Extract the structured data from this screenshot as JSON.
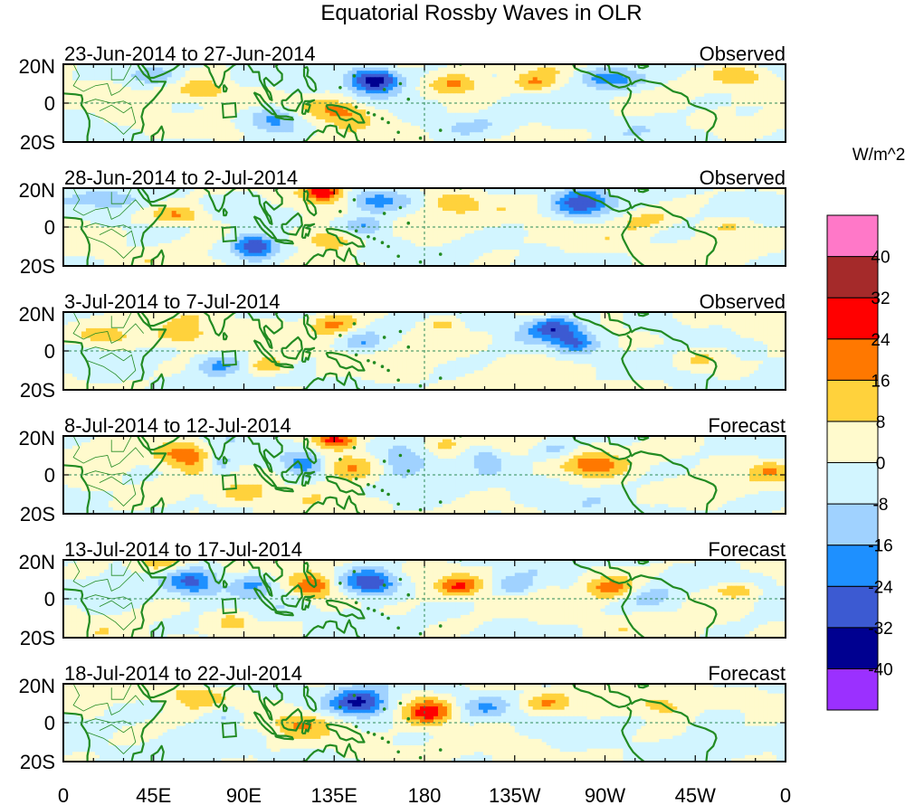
{
  "chart_data": {
    "type": "heatmap",
    "title": "Equatorial Rossby Waves in OLR",
    "units_label": "W/m^2",
    "x_tick_labels": [
      "0",
      "45E",
      "90E",
      "135E",
      "180",
      "135W",
      "90W",
      "45W",
      "0"
    ],
    "x_tick_lons": [
      0,
      45,
      90,
      135,
      180,
      225,
      270,
      315,
      360
    ],
    "x_range": [
      0,
      360
    ],
    "y_tick_labels": [
      "20N",
      "0",
      "20S"
    ],
    "y_tick_lats": [
      20,
      0,
      -20
    ],
    "y_range": [
      -20,
      20
    ],
    "levels": [
      -40,
      -32,
      -24,
      -16,
      -8,
      0,
      8,
      16,
      24,
      32,
      40
    ],
    "colorbar_labels": [
      "40",
      "32",
      "24",
      "16",
      "8",
      "0",
      "-8",
      "-16",
      "-24",
      "-32",
      "-40"
    ],
    "colors": [
      "#9b30ff",
      "#000090",
      "#3c5ad2",
      "#1e90ff",
      "#a0d2ff",
      "#d2f5ff",
      "#fffacd",
      "#ffd23c",
      "#ff7800",
      "#ff0000",
      "#a52a2a",
      "#ff78c8"
    ],
    "coast_color": "#228b22",
    "panels": [
      {
        "period": "23-Jun-2014 to 27-Jun-2014",
        "status": "Observed",
        "anomalies": [
          {
            "lon": 155,
            "lat": 12,
            "rlon": 12,
            "rlat": 6,
            "amp": -40
          },
          {
            "lon": 272,
            "lat": 12,
            "rlon": 16,
            "rlat": 6,
            "amp": -24
          },
          {
            "lon": 105,
            "lat": -8,
            "rlon": 12,
            "rlat": 6,
            "amp": -22
          },
          {
            "lon": 45,
            "lat": 14,
            "rlon": 14,
            "rlat": 5,
            "amp": -14
          },
          {
            "lon": 195,
            "lat": 10,
            "rlon": 14,
            "rlat": 6,
            "amp": 20
          },
          {
            "lon": 70,
            "lat": 6,
            "rlon": 12,
            "rlat": 5,
            "amp": 14
          },
          {
            "lon": 138,
            "lat": -4,
            "rlon": 14,
            "rlat": 6,
            "amp": 20
          },
          {
            "lon": 235,
            "lat": 10,
            "rlon": 10,
            "rlat": 5,
            "amp": 12
          },
          {
            "lon": 338,
            "lat": 14,
            "rlon": 12,
            "rlat": 5,
            "amp": 12
          },
          {
            "lon": 40,
            "lat": -10,
            "rlon": 16,
            "rlat": 6,
            "amp": 9
          },
          {
            "lon": 200,
            "lat": -12,
            "rlon": 25,
            "rlat": 6,
            "amp": -6
          }
        ]
      },
      {
        "period": "28-Jun-2014 to 2-Jul-2014",
        "status": "Observed",
        "anomalies": [
          {
            "lon": 95,
            "lat": -10,
            "rlon": 11,
            "rlat": 6,
            "amp": -34
          },
          {
            "lon": 155,
            "lat": 14,
            "rlon": 16,
            "rlat": 6,
            "amp": -22
          },
          {
            "lon": 258,
            "lat": 12,
            "rlon": 14,
            "rlat": 7,
            "amp": -26
          },
          {
            "lon": 150,
            "lat": 0,
            "rlon": 10,
            "rlat": 5,
            "amp": -16
          },
          {
            "lon": 130,
            "lat": 18,
            "rlon": 10,
            "rlat": 5,
            "amp": 30
          },
          {
            "lon": 58,
            "lat": 6,
            "rlon": 14,
            "rlat": 5,
            "amp": 18
          },
          {
            "lon": 132,
            "lat": -6,
            "rlon": 16,
            "rlat": 6,
            "amp": 20
          },
          {
            "lon": 195,
            "lat": 12,
            "rlon": 12,
            "rlat": 6,
            "amp": 12
          },
          {
            "lon": 290,
            "lat": 4,
            "rlon": 14,
            "rlat": 6,
            "amp": 10
          },
          {
            "lon": 330,
            "lat": 0,
            "rlon": 14,
            "rlat": 5,
            "amp": 9
          },
          {
            "lon": 25,
            "lat": 14,
            "rlon": 16,
            "rlat": 5,
            "amp": -12
          }
        ]
      },
      {
        "period": "3-Jul-2014 to 7-Jul-2014",
        "status": "Observed",
        "anomalies": [
          {
            "lon": 245,
            "lat": 12,
            "rlon": 14,
            "rlat": 6,
            "amp": -26
          },
          {
            "lon": 255,
            "lat": 4,
            "rlon": 10,
            "rlat": 5,
            "amp": -20
          },
          {
            "lon": 78,
            "lat": -8,
            "rlon": 12,
            "rlat": 5,
            "amp": -18
          },
          {
            "lon": 150,
            "lat": 4,
            "rlon": 10,
            "rlat": 5,
            "amp": -14
          },
          {
            "lon": 60,
            "lat": 8,
            "rlon": 14,
            "rlat": 6,
            "amp": 16
          },
          {
            "lon": 102,
            "lat": -8,
            "rlon": 12,
            "rlat": 5,
            "amp": 18
          },
          {
            "lon": 135,
            "lat": 14,
            "rlon": 12,
            "rlat": 5,
            "amp": 18
          },
          {
            "lon": 190,
            "lat": 14,
            "rlon": 10,
            "rlat": 5,
            "amp": 12
          },
          {
            "lon": 20,
            "lat": 8,
            "rlon": 14,
            "rlat": 5,
            "amp": 10
          },
          {
            "lon": 318,
            "lat": -4,
            "rlon": 14,
            "rlat": 5,
            "amp": 10
          },
          {
            "lon": 300,
            "lat": 12,
            "rlon": 12,
            "rlat": 5,
            "amp": -8
          }
        ]
      },
      {
        "period": "8-Jul-2014 to 12-Jul-2014",
        "status": "Forecast",
        "anomalies": [
          {
            "lon": 62,
            "lat": 10,
            "rlon": 14,
            "rlat": 7,
            "amp": 24
          },
          {
            "lon": 142,
            "lat": 4,
            "rlon": 14,
            "rlat": 7,
            "amp": 22
          },
          {
            "lon": 135,
            "lat": 18,
            "rlon": 10,
            "rlat": 4,
            "amp": 24
          },
          {
            "lon": 265,
            "lat": 6,
            "rlon": 14,
            "rlat": 6,
            "amp": 18
          },
          {
            "lon": 78,
            "lat": 6,
            "rlon": 8,
            "rlat": 6,
            "amp": -18
          },
          {
            "lon": 120,
            "lat": 6,
            "rlon": 10,
            "rlat": 6,
            "amp": -18
          },
          {
            "lon": 170,
            "lat": 6,
            "rlon": 12,
            "rlat": 8,
            "amp": -16
          },
          {
            "lon": 210,
            "lat": 10,
            "rlon": 10,
            "rlat": 6,
            "amp": -14
          },
          {
            "lon": 245,
            "lat": 12,
            "rlon": 10,
            "rlat": 5,
            "amp": -12
          },
          {
            "lon": 90,
            "lat": -10,
            "rlon": 12,
            "rlat": 5,
            "amp": 14
          },
          {
            "lon": 190,
            "lat": 14,
            "rlon": 10,
            "rlat": 5,
            "amp": 10
          },
          {
            "lon": 352,
            "lat": 2,
            "rlon": 10,
            "rlat": 5,
            "amp": 12
          }
        ]
      },
      {
        "period": "13-Jul-2014 to 17-Jul-2014",
        "status": "Forecast",
        "anomalies": [
          {
            "lon": 153,
            "lat": 8,
            "rlon": 14,
            "rlat": 7,
            "amp": -32
          },
          {
            "lon": 65,
            "lat": 8,
            "rlon": 12,
            "rlat": 7,
            "amp": -22
          },
          {
            "lon": 95,
            "lat": 8,
            "rlon": 10,
            "rlat": 6,
            "amp": -18
          },
          {
            "lon": 225,
            "lat": 6,
            "rlon": 10,
            "rlat": 5,
            "amp": -16
          },
          {
            "lon": 198,
            "lat": 6,
            "rlon": 10,
            "rlat": 5,
            "amp": 22
          },
          {
            "lon": 272,
            "lat": 6,
            "rlon": 12,
            "rlat": 6,
            "amp": 22
          },
          {
            "lon": 335,
            "lat": 4,
            "rlon": 10,
            "rlat": 4,
            "amp": 18
          },
          {
            "lon": 125,
            "lat": 6,
            "rlon": 10,
            "rlat": 6,
            "amp": 24
          },
          {
            "lon": 48,
            "lat": 18,
            "rlon": 12,
            "rlat": 4,
            "amp": 14
          },
          {
            "lon": 85,
            "lat": -12,
            "rlon": 10,
            "rlat": 5,
            "amp": 12
          },
          {
            "lon": 295,
            "lat": 0,
            "rlon": 12,
            "rlat": 6,
            "amp": -9
          }
        ]
      },
      {
        "period": "18-Jul-2014 to 22-Jul-2014",
        "status": "Forecast",
        "anomalies": [
          {
            "lon": 148,
            "lat": 10,
            "rlon": 14,
            "rlat": 7,
            "amp": -34
          },
          {
            "lon": 182,
            "lat": 6,
            "rlon": 12,
            "rlat": 7,
            "amp": 30
          },
          {
            "lon": 240,
            "lat": 10,
            "rlon": 12,
            "rlat": 5,
            "amp": 16
          },
          {
            "lon": 298,
            "lat": 8,
            "rlon": 14,
            "rlat": 6,
            "amp": 14
          },
          {
            "lon": 210,
            "lat": 8,
            "rlon": 10,
            "rlat": 5,
            "amp": -10
          },
          {
            "lon": 118,
            "lat": 0,
            "rlon": 12,
            "rlat": 6,
            "amp": 14
          },
          {
            "lon": 65,
            "lat": 14,
            "rlon": 12,
            "rlat": 5,
            "amp": 12
          },
          {
            "lon": 80,
            "lat": 4,
            "rlon": 10,
            "rlat": 5,
            "amp": -12
          },
          {
            "lon": 330,
            "lat": 4,
            "rlon": 12,
            "rlat": 4,
            "amp": -8
          }
        ]
      }
    ]
  }
}
